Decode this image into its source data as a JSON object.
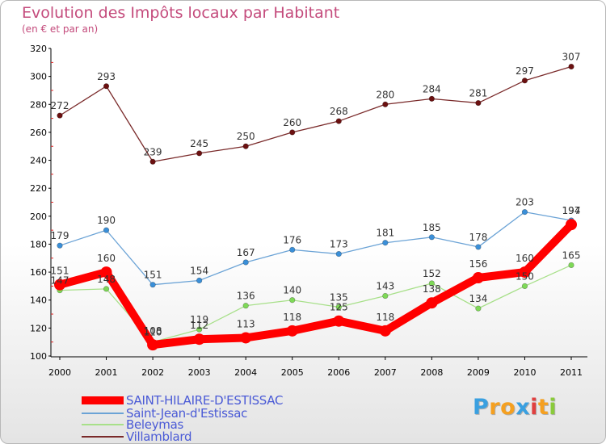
{
  "chart_data": {
    "type": "line",
    "title": "Evolution des Impôts locaux par Habitant",
    "subtitle": "(en € et par an)",
    "xlabel": "",
    "ylabel": "",
    "x": [
      2000,
      2001,
      2002,
      2003,
      2004,
      2005,
      2006,
      2007,
      2008,
      2009,
      2010,
      2011
    ],
    "x_labels": [
      "2000",
      "2001",
      "2002",
      "2003",
      "2004",
      "2005",
      "2006",
      "2007",
      "2008",
      "2009",
      "2010",
      "2011"
    ],
    "ylim": [
      100,
      320
    ],
    "yticks": [
      100,
      120,
      140,
      160,
      180,
      200,
      220,
      240,
      260,
      280,
      300,
      320
    ],
    "ytick_labels": [
      "100",
      "120",
      "140",
      "160",
      "180",
      "200",
      "220",
      "240",
      "260",
      "280",
      "300",
      "320"
    ],
    "grid": false,
    "legend_position": "bottom-left",
    "series": [
      {
        "name": "SAINT-HILAIRE-D'ESTISSAC",
        "color": "#ff0000",
        "style": "thick",
        "values": [
          151,
          160,
          108,
          112,
          113,
          118,
          125,
          118,
          138,
          156,
          160,
          194
        ],
        "labels": [
          "151",
          "160",
          "108",
          "112",
          "113",
          "118",
          "125",
          "118",
          "138",
          "156",
          "160",
          "194"
        ]
      },
      {
        "name": "Saint-Jean-d'Estissac",
        "color": "#6ba3d6",
        "marker": "#3a8fd8",
        "values": [
          179,
          190,
          151,
          154,
          167,
          176,
          173,
          181,
          185,
          178,
          203,
          197
        ],
        "labels": [
          "179",
          "190",
          "151",
          "154",
          "167",
          "176",
          "173",
          "181",
          "185",
          "178",
          "203",
          "197"
        ]
      },
      {
        "name": "Beleymas",
        "color": "#a8e08a",
        "marker": "#7ed957",
        "values": [
          147,
          148,
          110,
          119,
          136,
          140,
          135,
          143,
          152,
          134,
          150,
          165
        ],
        "labels": [
          "147",
          "148",
          "110",
          "119",
          "136",
          "140",
          "135",
          "143",
          "152",
          "134",
          "150",
          "165"
        ]
      },
      {
        "name": "Villamblard",
        "color": "#7a2a2a",
        "marker": "#6b1010",
        "values": [
          272,
          293,
          239,
          245,
          250,
          260,
          268,
          280,
          284,
          281,
          297,
          307
        ],
        "labels": [
          "272",
          "293",
          "239",
          "245",
          "250",
          "260",
          "268",
          "280",
          "284",
          "281",
          "297",
          "307"
        ]
      }
    ]
  },
  "logo": {
    "letters": [
      "P",
      "r",
      "o",
      "x",
      "i",
      "t",
      "i"
    ],
    "colors": [
      "#3aa0e0",
      "#f5a020",
      "#f5a020",
      "#3aa0e0",
      "#e04040",
      "#f5a020",
      "#8acb3a"
    ]
  }
}
